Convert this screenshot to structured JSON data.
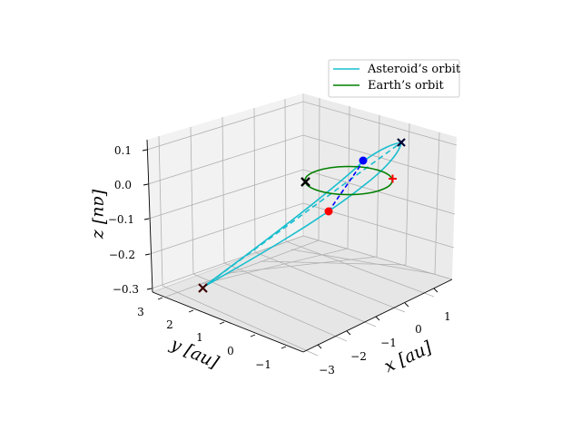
{
  "chart_data": {
    "type": "line",
    "projection": "3d",
    "title": "",
    "xlabel": "$x$ [au]",
    "ylabel": "$y$ [au]",
    "zlabel": "$z$ [au]",
    "xlabel_text": "x [au]",
    "ylabel_text": "y [au]",
    "zlabel_text": "[au] z",
    "xlim": [
      -3.3,
      1.5
    ],
    "ylim": [
      -1.5,
      3.2
    ],
    "zlim": [
      -0.3,
      0.12
    ],
    "xticks": [
      "−3",
      "−2",
      "−1",
      "0",
      "1"
    ],
    "yticks": [
      "−1",
      "0",
      "1",
      "2",
      "3"
    ],
    "zticks": [
      "−0.3",
      "−0.2",
      "−0.1",
      "0.0",
      "0.1"
    ],
    "grid": true,
    "legend_position": "top-right",
    "colors": {
      "asteroid": "#17becf",
      "earth": "#008000",
      "transfer": "#0000ff",
      "marker_black": "#000000",
      "marker_red": "#ff0000",
      "marker_blue": "#0000ff",
      "marker_darkred": "#8b0000"
    },
    "series": [
      {
        "name": "Asteroid’s orbit"
      },
      {
        "name": "Earth’s orbit"
      }
    ]
  }
}
